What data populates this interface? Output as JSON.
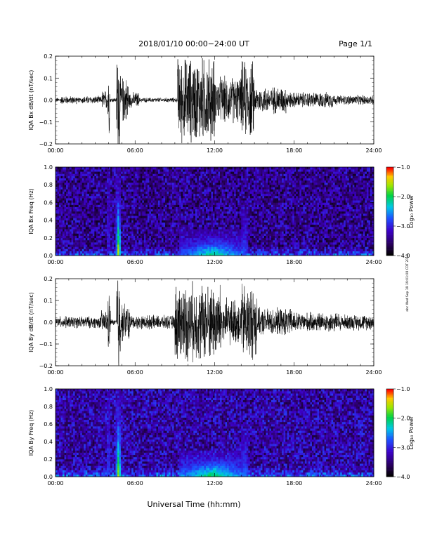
{
  "header": {
    "date_range": "2018/01/10   00:00−24:00  UT",
    "page": "Page 1/1"
  },
  "side_stamp": "abc Wed Sep 19 19:01:08 CDT 2018",
  "xaxis": {
    "label": "Universal Time (hh:mm)",
    "tick_labels": [
      "00:00",
      "06:00",
      "12:00",
      "18:00",
      "24:00"
    ],
    "range_hours": [
      0,
      24
    ]
  },
  "chart_data": [
    {
      "type": "line",
      "ylabel": "IQA Bx dB/dt (nT/sec)",
      "ylim": [
        -0.2,
        0.2
      ],
      "y_ticks": [
        -0.2,
        -0.1,
        0.0,
        0.1,
        0.2
      ],
      "y_tick_labels": [
        "−0.2",
        "−0.1",
        "0.0",
        "0.1",
        "0.2"
      ],
      "baseline_noise": 0.012,
      "bursts": [
        {
          "start_h": 0.4,
          "end_h": 1.6,
          "amp": 0.02
        },
        {
          "start_h": 2.0,
          "end_h": 3.4,
          "amp": 0.02
        },
        {
          "start_h": 3.5,
          "end_h": 3.9,
          "amp": 0.05
        },
        {
          "start_h": 3.95,
          "end_h": 4.1,
          "amp": 0.17
        },
        {
          "start_h": 4.6,
          "end_h": 4.85,
          "amp": 0.3
        },
        {
          "start_h": 4.85,
          "end_h": 5.5,
          "amp": 0.12
        },
        {
          "start_h": 5.5,
          "end_h": 6.3,
          "amp": 0.04
        },
        {
          "start_h": 9.2,
          "end_h": 12.0,
          "amp": 0.22
        },
        {
          "start_h": 12.0,
          "end_h": 14.0,
          "amp": 0.12
        },
        {
          "start_h": 14.0,
          "end_h": 15.0,
          "amp": 0.2
        },
        {
          "start_h": 15.0,
          "end_h": 17.5,
          "amp": 0.07
        },
        {
          "start_h": 17.5,
          "end_h": 21.0,
          "amp": 0.04
        },
        {
          "start_h": 21.0,
          "end_h": 24.0,
          "amp": 0.025
        }
      ]
    },
    {
      "type": "heatmap",
      "ylabel": "IQA Bx Freq (Hz)",
      "ylim": [
        0.0,
        1.0
      ],
      "y_ticks": [
        0.0,
        0.2,
        0.4,
        0.6,
        0.8,
        1.0
      ],
      "y_tick_labels": [
        "0.0",
        "0.2",
        "0.4",
        "0.6",
        "0.8",
        "1.0"
      ],
      "colorbar": {
        "label": "Log₁₀ Power",
        "range": [
          -4.0,
          -1.0
        ],
        "tick_labels": [
          "−1.0",
          "−2.0",
          "−3.0",
          "−4.0"
        ],
        "ticks": [
          -1.0,
          -2.0,
          -3.0,
          -4.0
        ]
      },
      "background_log_power": -3.4,
      "features": [
        {
          "start_h": 9.3,
          "end_h": 14.5,
          "peak_log_power": -2.0,
          "max_freq_hz": 0.3
        },
        {
          "start_h": 4.6,
          "end_h": 4.9,
          "peak_log_power": -1.3,
          "max_freq_hz": 1.0
        },
        {
          "start_h": 3.9,
          "end_h": 4.1,
          "peak_log_power": -2.7,
          "max_freq_hz": 1.0
        },
        {
          "start_h": 14.0,
          "end_h": 14.5,
          "peak_log_power": -2.6,
          "max_freq_hz": 0.55
        }
      ]
    },
    {
      "type": "line",
      "ylabel": "IQA By dB/dt (nT/sec)",
      "ylim": [
        -0.2,
        0.2
      ],
      "y_ticks": [
        -0.2,
        -0.1,
        0.0,
        0.1,
        0.2
      ],
      "y_tick_labels": [
        "−0.2",
        "−0.1",
        "0.0",
        "0.1",
        "0.2"
      ],
      "baseline_noise": 0.015,
      "bursts": [
        {
          "start_h": 0.0,
          "end_h": 3.4,
          "amp": 0.03
        },
        {
          "start_h": 3.4,
          "end_h": 4.0,
          "amp": 0.06
        },
        {
          "start_h": 3.95,
          "end_h": 4.15,
          "amp": 0.15
        },
        {
          "start_h": 4.6,
          "end_h": 4.9,
          "amp": 0.3
        },
        {
          "start_h": 4.9,
          "end_h": 5.6,
          "amp": 0.1
        },
        {
          "start_h": 5.6,
          "end_h": 9.0,
          "amp": 0.035
        },
        {
          "start_h": 9.0,
          "end_h": 12.5,
          "amp": 0.2
        },
        {
          "start_h": 12.5,
          "end_h": 14.0,
          "amp": 0.12
        },
        {
          "start_h": 14.0,
          "end_h": 15.2,
          "amp": 0.2
        },
        {
          "start_h": 15.2,
          "end_h": 18.0,
          "amp": 0.07
        },
        {
          "start_h": 18.0,
          "end_h": 21.5,
          "amp": 0.05
        },
        {
          "start_h": 21.5,
          "end_h": 24.0,
          "amp": 0.04
        }
      ]
    },
    {
      "type": "heatmap",
      "ylabel": "IQA By Freq (Hz)",
      "ylim": [
        0.0,
        1.0
      ],
      "y_ticks": [
        0.0,
        0.2,
        0.4,
        0.6,
        0.8,
        1.0
      ],
      "y_tick_labels": [
        "0.0",
        "0.2",
        "0.4",
        "0.6",
        "0.8",
        "1.0"
      ],
      "colorbar": {
        "label": "Log₁₀ Power",
        "range": [
          -4.0,
          -1.0
        ],
        "tick_labels": [
          "−1.0",
          "−2.0",
          "−3.0",
          "−4.0"
        ],
        "ticks": [
          -1.0,
          -2.0,
          -3.0,
          -4.0
        ]
      },
      "background_log_power": -3.3,
      "features": [
        {
          "start_h": 9.3,
          "end_h": 14.5,
          "peak_log_power": -1.9,
          "max_freq_hz": 0.3
        },
        {
          "start_h": 4.6,
          "end_h": 4.9,
          "peak_log_power": -1.4,
          "max_freq_hz": 1.0
        },
        {
          "start_h": 3.9,
          "end_h": 4.1,
          "peak_log_power": -2.6,
          "max_freq_hz": 1.0
        },
        {
          "start_h": 14.0,
          "end_h": 14.5,
          "peak_log_power": -2.5,
          "max_freq_hz": 0.55
        }
      ]
    }
  ]
}
